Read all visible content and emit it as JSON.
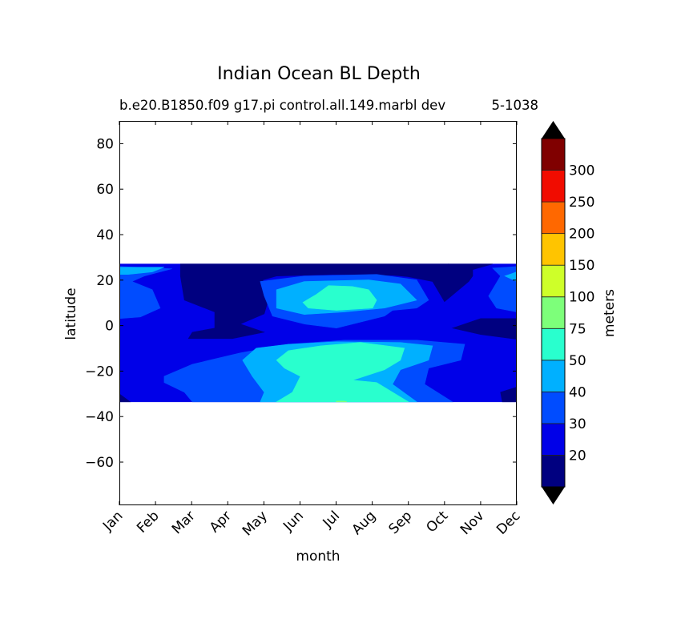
{
  "chart_data": {
    "type": "contour",
    "title": "Indian Ocean BL Depth",
    "subtitle_left": "b.e20.B1850.f09 g17.pi control.all.149.marbl dev",
    "subtitle_right": "5-1038",
    "xlabel": "month",
    "ylabel": "latitude",
    "x_ticks": [
      "Jan",
      "Feb",
      "Mar",
      "Apr",
      "May",
      "Jun",
      "Jul",
      "Aug",
      "Sep",
      "Oct",
      "Nov",
      "Dec"
    ],
    "y_ticks": [
      80,
      60,
      40,
      20,
      0,
      -20,
      -40,
      -60
    ],
    "y_tick_labels": [
      "80",
      "60",
      "40",
      "20",
      "0",
      "−20",
      "−40",
      "−60"
    ],
    "xlim": [
      0,
      11
    ],
    "ylim": [
      -79,
      90
    ],
    "data_lat_range": [
      -33.5,
      27.1
    ],
    "colorbar": {
      "label": "meters",
      "levels": [
        20,
        30,
        40,
        50,
        75,
        100,
        150,
        200,
        250,
        300
      ],
      "tick_labels": [
        "20",
        "30",
        "40",
        "50",
        "75",
        "100",
        "150",
        "200",
        "250",
        "300"
      ],
      "colors": [
        "#000080",
        "#0000e8",
        "#004cff",
        "#00b0ff",
        "#29ffce",
        "#7dff7a",
        "#ceff29",
        "#ffc400",
        "#ff6800",
        "#f10c00",
        "#800000"
      ],
      "extend": "both"
    },
    "regions": [
      {
        "bin": 1,
        "points": [
          [
            0,
            27.1
          ],
          [
            11,
            27.1
          ],
          [
            11,
            -33.5
          ],
          [
            0,
            -33.5
          ]
        ]
      },
      {
        "bin": 0,
        "points": [
          [
            1.69,
            27.1
          ],
          [
            9.11,
            27.1
          ],
          [
            9,
            21.8
          ],
          [
            6.01,
            22.5
          ],
          [
            4.35,
            21.8
          ],
          [
            3.97,
            20.1
          ],
          [
            4.12,
            11.2
          ],
          [
            4.01,
            5.2
          ],
          [
            3.35,
            0.7
          ],
          [
            4.01,
            -2.9
          ],
          [
            3.13,
            -5.7
          ],
          [
            1.91,
            -5.7
          ],
          [
            2.02,
            -2.9
          ],
          [
            2.64,
            -1.1
          ],
          [
            2.64,
            6
          ],
          [
            1.8,
            11.2
          ],
          [
            1.69,
            21.8
          ]
        ]
      },
      {
        "bin": 0,
        "points": [
          [
            9.11,
            27.1
          ],
          [
            10.33,
            27.1
          ],
          [
            9.78,
            24.6
          ],
          [
            9.78,
            21.8
          ],
          [
            9.67,
            19.4
          ],
          [
            9,
            10.5
          ],
          [
            8.67,
            19.4
          ],
          [
            8,
            21.5
          ],
          [
            7.34,
            22.5
          ]
        ]
      },
      {
        "bin": 0,
        "points": [
          [
            9.22,
            -1.1
          ],
          [
            10,
            3.1
          ],
          [
            11,
            3.1
          ],
          [
            11,
            -6
          ],
          [
            10,
            -3.9
          ]
        ]
      },
      {
        "bin": 0,
        "points": [
          [
            0,
            -30
          ],
          [
            0.3,
            -33.5
          ],
          [
            0,
            -33.5
          ]
        ]
      },
      {
        "bin": 0,
        "points": [
          [
            10.55,
            -29.3
          ],
          [
            11,
            -27
          ],
          [
            11,
            -33.5
          ],
          [
            10.6,
            -33.5
          ]
        ]
      },
      {
        "bin": 2,
        "points": [
          [
            0,
            26
          ],
          [
            1.46,
            25
          ],
          [
            0.69,
            21.8
          ],
          [
            0.35,
            19.4
          ],
          [
            0.91,
            15.8
          ],
          [
            1.13,
            7.7
          ],
          [
            0.58,
            3.8
          ],
          [
            0,
            3.1
          ]
        ]
      },
      {
        "bin": 2,
        "points": [
          [
            11,
            26
          ],
          [
            10.33,
            25.3
          ],
          [
            10.55,
            21.8
          ],
          [
            10.22,
            13
          ],
          [
            10.44,
            7.7
          ],
          [
            11,
            6
          ]
        ]
      },
      {
        "bin": 2,
        "points": [
          [
            3.9,
            19.4
          ],
          [
            5.12,
            21.8
          ],
          [
            7.12,
            22.5
          ],
          [
            8.23,
            20.1
          ],
          [
            8.56,
            11.2
          ],
          [
            8.23,
            7.7
          ],
          [
            7.56,
            6.7
          ],
          [
            7.34,
            4.2
          ],
          [
            6.01,
            -1.1
          ],
          [
            5.12,
            0.7
          ],
          [
            4.24,
            4.2
          ],
          [
            4.01,
            13
          ]
        ]
      },
      {
        "bin": 2,
        "points": [
          [
            1.24,
            -22.3
          ],
          [
            2.02,
            -17
          ],
          [
            3.35,
            -12
          ],
          [
            4.68,
            -8.2
          ],
          [
            6.23,
            -6.4
          ],
          [
            8.23,
            -6.4
          ],
          [
            9.56,
            -8.2
          ],
          [
            9.45,
            -15.2
          ],
          [
            8.56,
            -18.7
          ],
          [
            8.45,
            -25.8
          ],
          [
            9.22,
            -33.5
          ],
          [
            2.02,
            -33.5
          ],
          [
            1.8,
            -29.3
          ],
          [
            1.24,
            -25
          ]
        ]
      },
      {
        "bin": 3,
        "points": [
          [
            0,
            25.7
          ],
          [
            1.24,
            25.7
          ],
          [
            0.91,
            23.6
          ],
          [
            0.24,
            22.5
          ],
          [
            0,
            22.5
          ]
        ]
      },
      {
        "bin": 3,
        "points": [
          [
            4.35,
            15.8
          ],
          [
            5.12,
            19.4
          ],
          [
            6.9,
            20.1
          ],
          [
            7.78,
            18.3
          ],
          [
            8.23,
            11.2
          ],
          [
            7.34,
            7.7
          ],
          [
            6.23,
            6
          ],
          [
            5.12,
            4.9
          ],
          [
            4.35,
            7.7
          ]
        ]
      },
      {
        "bin": 3,
        "points": [
          [
            3.41,
            -15.2
          ],
          [
            3.79,
            -9.9
          ],
          [
            4.68,
            -8.2
          ],
          [
            6.01,
            -7.1
          ],
          [
            7.78,
            -7.4
          ],
          [
            8.67,
            -8.9
          ],
          [
            8.56,
            -15.2
          ],
          [
            7.78,
            -19.4
          ],
          [
            7.56,
            -25.8
          ],
          [
            8.23,
            -33.5
          ],
          [
            3.9,
            -33.5
          ],
          [
            4.01,
            -29.3
          ],
          [
            3.68,
            -22.3
          ]
        ]
      },
      {
        "bin": 3,
        "points": [
          [
            11,
            23.6
          ],
          [
            10.67,
            21.8
          ],
          [
            11,
            19.4
          ]
        ]
      },
      {
        "bin": 4,
        "points": [
          [
            5.08,
            10.2
          ],
          [
            5.45,
            13.7
          ],
          [
            5.79,
            17.6
          ],
          [
            6.45,
            17.2
          ],
          [
            6.9,
            15.8
          ],
          [
            7.12,
            11.2
          ],
          [
            7.01,
            7.7
          ],
          [
            6.01,
            6.7
          ],
          [
            5.23,
            7.7
          ]
        ]
      },
      {
        "bin": 4,
        "points": [
          [
            4.35,
            -15.2
          ],
          [
            4.68,
            -11
          ],
          [
            5.57,
            -8.9
          ],
          [
            6.67,
            -7.4
          ],
          [
            7.89,
            -9.9
          ],
          [
            7.78,
            -15.2
          ],
          [
            7.34,
            -19.4
          ],
          [
            6.45,
            -24
          ],
          [
            7.12,
            -25
          ],
          [
            8,
            -33.5
          ],
          [
            4.35,
            -33.5
          ],
          [
            4.79,
            -29.3
          ],
          [
            5.01,
            -22.3
          ],
          [
            4.57,
            -18.7
          ]
        ]
      },
      {
        "bin": 5,
        "points": [
          [
            6.01,
            -33.2
          ],
          [
            6.23,
            -33.2
          ],
          [
            6.3,
            -33.5
          ],
          [
            6,
            -33.5
          ]
        ]
      }
    ]
  }
}
